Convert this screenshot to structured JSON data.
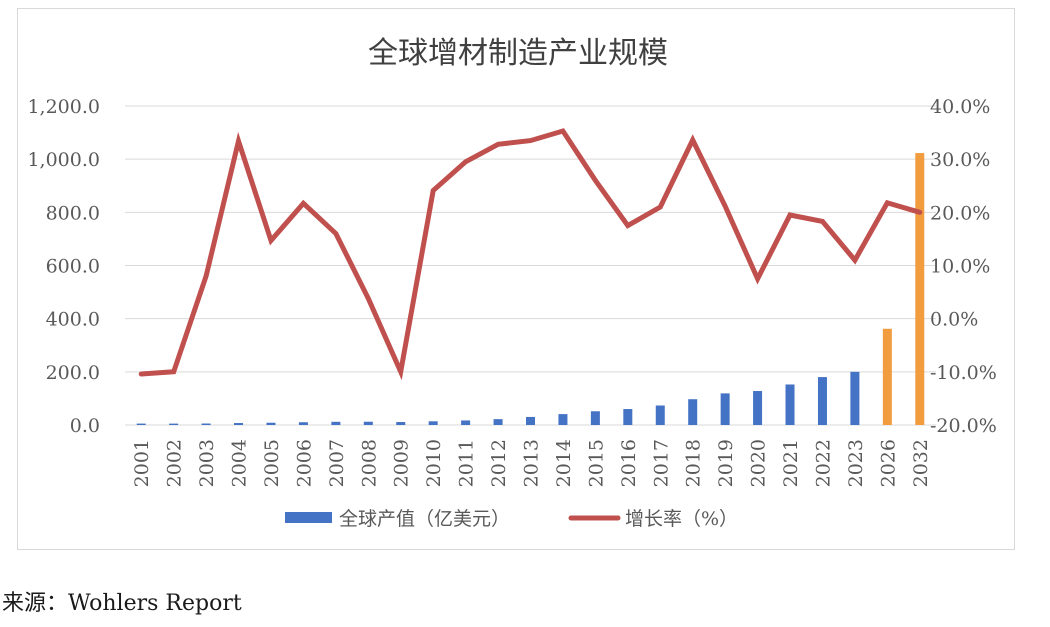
{
  "chart_data": {
    "type": "bar",
    "title": "全球增材制造产业规模",
    "categories": [
      "2001",
      "2002",
      "2003",
      "2004",
      "2005",
      "2006",
      "2007",
      "2008",
      "2009",
      "2010",
      "2011",
      "2012",
      "2013",
      "2014",
      "2015",
      "2016",
      "2017",
      "2018",
      "2019",
      "2020",
      "2021",
      "2022",
      "2023",
      "2026",
      "2032"
    ],
    "series": [
      {
        "name": "全球产值（亿美元）",
        "type": "bar",
        "axis": "left",
        "color": "#4472c4",
        "forecast_color": "#f19d3f",
        "forecast_categories": [
          "2026",
          "2032"
        ],
        "values": [
          5.3,
          5.2,
          5.6,
          7.4,
          8.5,
          10.4,
          12.0,
          12.3,
          11.1,
          13.9,
          17.1,
          22.0,
          30.3,
          41.0,
          51.7,
          60.0,
          73.4,
          97.0,
          119.0,
          127.8,
          152.4,
          180.3,
          200.0,
          362.0,
          1023.0
        ]
      },
      {
        "name": "增长率（%）",
        "type": "line",
        "axis": "right",
        "color": "#c0504d",
        "values": [
          -10.4,
          -10.0,
          8.0,
          33.4,
          14.7,
          21.7,
          16.0,
          3.8,
          -10.0,
          24.1,
          29.5,
          32.8,
          33.5,
          35.3,
          26.0,
          17.5,
          21.0,
          33.6,
          21.2,
          7.5,
          19.5,
          18.3,
          11.0,
          21.8,
          20.0
        ]
      }
    ],
    "y_left": {
      "min": 0,
      "max": 1200,
      "step": 200,
      "tick_labels": [
        "0.0",
        "200.0",
        "400.0",
        "600.0",
        "800.0",
        "1,000.0",
        "1,200.0"
      ]
    },
    "y_right": {
      "min": -20,
      "max": 40,
      "step": 10,
      "tick_labels": [
        "-20.0%",
        "-10.0%",
        "0.0%",
        "10.0%",
        "20.0%",
        "30.0%",
        "40.0%"
      ]
    },
    "grid": true,
    "legend_position": "bottom",
    "xlabel": "",
    "ylabel": ""
  },
  "source": {
    "label": "来源：",
    "text": "Wohlers Report"
  }
}
